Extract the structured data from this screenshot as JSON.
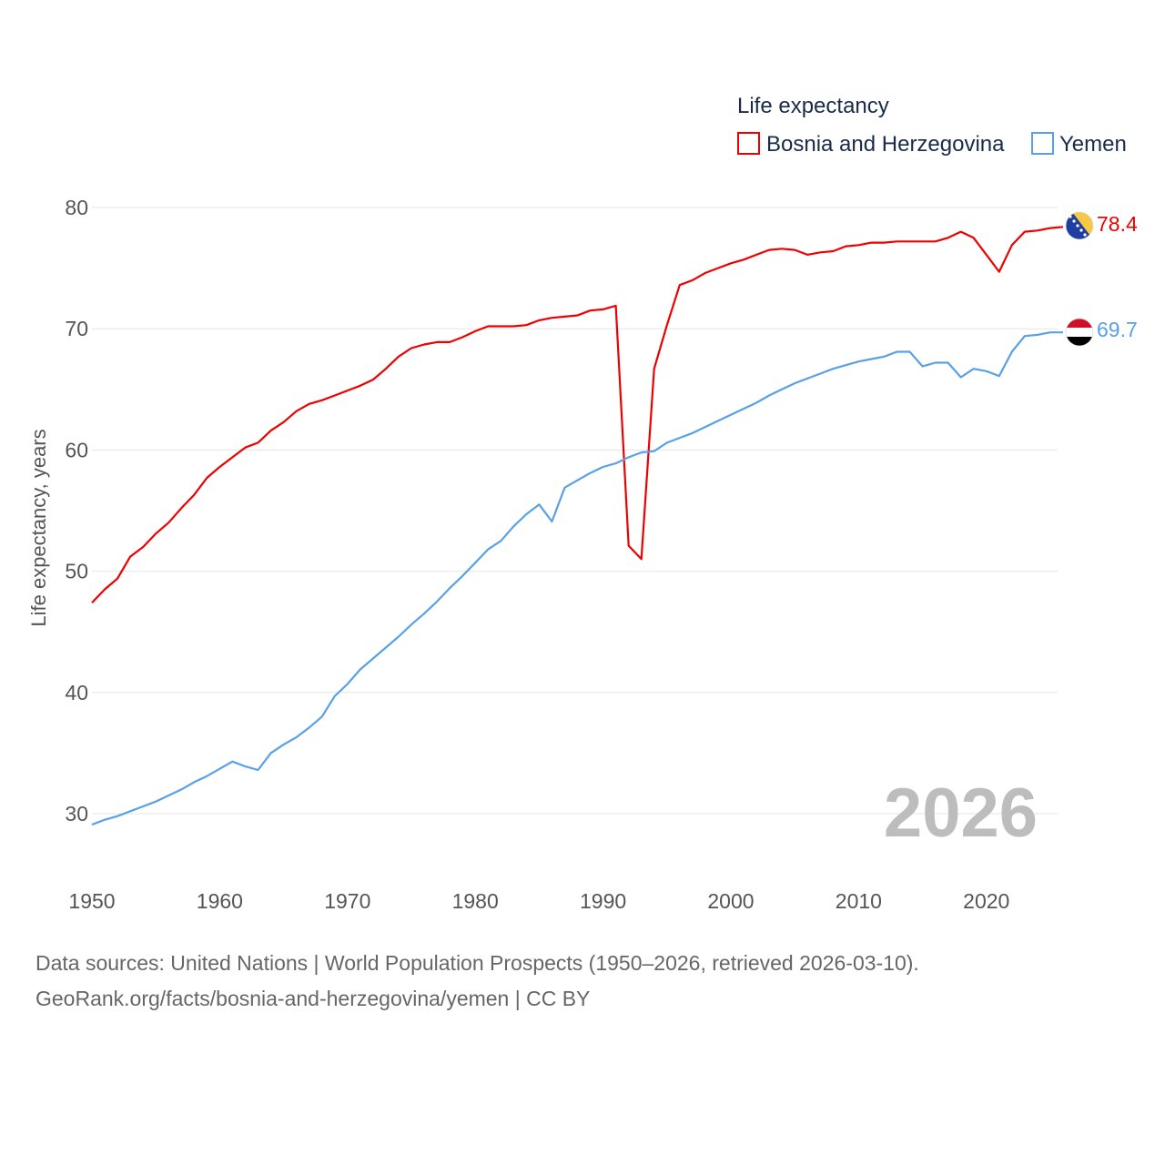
{
  "chart_data": {
    "type": "line",
    "legend_title": "Life expectancy",
    "ylabel": "Life expectancy, years",
    "xlim": [
      1950,
      2026
    ],
    "ylim": [
      25,
      82
    ],
    "yticks": [
      30,
      40,
      50,
      60,
      70,
      80
    ],
    "xticks": [
      1950,
      1960,
      1970,
      1980,
      1990,
      2000,
      2010,
      2020
    ],
    "current_year_label": "2026",
    "series": [
      {
        "name": "Bosnia and Herzegovina",
        "color": "#ee0000",
        "end_label": "78.4",
        "flag_icon": "bosnia-flag-icon",
        "x": [
          1950,
          1951,
          1952,
          1953,
          1954,
          1955,
          1956,
          1957,
          1958,
          1959,
          1960,
          1961,
          1962,
          1963,
          1964,
          1965,
          1966,
          1967,
          1968,
          1969,
          1970,
          1971,
          1972,
          1973,
          1974,
          1975,
          1976,
          1977,
          1978,
          1979,
          1980,
          1981,
          1982,
          1983,
          1984,
          1985,
          1986,
          1987,
          1988,
          1989,
          1990,
          1991,
          1992,
          1993,
          1994,
          1995,
          1996,
          1997,
          1998,
          1999,
          2000,
          2001,
          2002,
          2003,
          2004,
          2005,
          2006,
          2007,
          2008,
          2009,
          2010,
          2011,
          2012,
          2013,
          2014,
          2015,
          2016,
          2017,
          2018,
          2019,
          2020,
          2021,
          2022,
          2023,
          2024,
          2025,
          2026
        ],
        "values": [
          47.4,
          48.5,
          49.4,
          51.2,
          52.0,
          53.1,
          54.0,
          55.2,
          56.3,
          57.7,
          58.6,
          59.4,
          60.2,
          60.6,
          61.6,
          62.3,
          63.2,
          63.8,
          64.1,
          64.5,
          64.9,
          65.3,
          65.8,
          66.7,
          67.7,
          68.4,
          68.7,
          68.9,
          68.9,
          69.3,
          69.8,
          70.2,
          70.2,
          70.2,
          70.3,
          70.7,
          70.9,
          71.0,
          71.1,
          71.5,
          71.6,
          71.9,
          52.1,
          51.0,
          66.7,
          70.3,
          73.6,
          74.0,
          74.6,
          75.0,
          75.4,
          75.7,
          76.1,
          76.5,
          76.6,
          76.5,
          76.1,
          76.3,
          76.4,
          76.8,
          76.9,
          77.1,
          77.1,
          77.2,
          77.2,
          77.2,
          77.2,
          77.5,
          78.0,
          77.5,
          76.1,
          74.7,
          76.9,
          78.0,
          78.1,
          78.3,
          78.4
        ]
      },
      {
        "name": "Yemen",
        "color": "#5aa0e6",
        "end_label": "69.7",
        "flag_icon": "yemen-flag-icon",
        "x": [
          1950,
          1951,
          1952,
          1953,
          1954,
          1955,
          1956,
          1957,
          1958,
          1959,
          1960,
          1961,
          1962,
          1963,
          1964,
          1965,
          1966,
          1967,
          1968,
          1969,
          1970,
          1971,
          1972,
          1973,
          1974,
          1975,
          1976,
          1977,
          1978,
          1979,
          1980,
          1981,
          1982,
          1983,
          1984,
          1985,
          1986,
          1987,
          1988,
          1989,
          1990,
          1991,
          1992,
          1993,
          1994,
          1995,
          1996,
          1997,
          1998,
          1999,
          2000,
          2001,
          2002,
          2003,
          2004,
          2005,
          2006,
          2007,
          2008,
          2009,
          2010,
          2011,
          2012,
          2013,
          2014,
          2015,
          2016,
          2017,
          2018,
          2019,
          2020,
          2021,
          2022,
          2023,
          2024,
          2025,
          2026
        ],
        "values": [
          29.1,
          29.5,
          29.8,
          30.2,
          30.6,
          31.0,
          31.5,
          32.0,
          32.6,
          33.1,
          33.7,
          34.3,
          33.9,
          33.6,
          35.0,
          35.7,
          36.3,
          37.1,
          38.0,
          39.7,
          40.7,
          41.9,
          42.8,
          43.7,
          44.6,
          45.6,
          46.5,
          47.5,
          48.6,
          49.6,
          50.7,
          51.8,
          52.5,
          53.7,
          54.7,
          55.5,
          54.1,
          56.9,
          57.5,
          58.1,
          58.6,
          58.9,
          59.4,
          59.8,
          59.9,
          60.6,
          61.0,
          61.4,
          61.9,
          62.4,
          62.9,
          63.4,
          63.9,
          64.5,
          65.0,
          65.5,
          65.9,
          66.3,
          66.7,
          67.0,
          67.3,
          67.5,
          67.7,
          68.1,
          68.1,
          66.9,
          67.2,
          67.2,
          66.0,
          66.7,
          66.5,
          66.1,
          68.1,
          69.4,
          69.5,
          69.7,
          69.7
        ]
      }
    ]
  },
  "footer": {
    "line1": "Data sources: United Nations | World Population Prospects (1950–2026, retrieved 2026-03-10).",
    "line2": "GeoRank.org/facts/bosnia-and-herzegovina/yemen | CC BY"
  }
}
